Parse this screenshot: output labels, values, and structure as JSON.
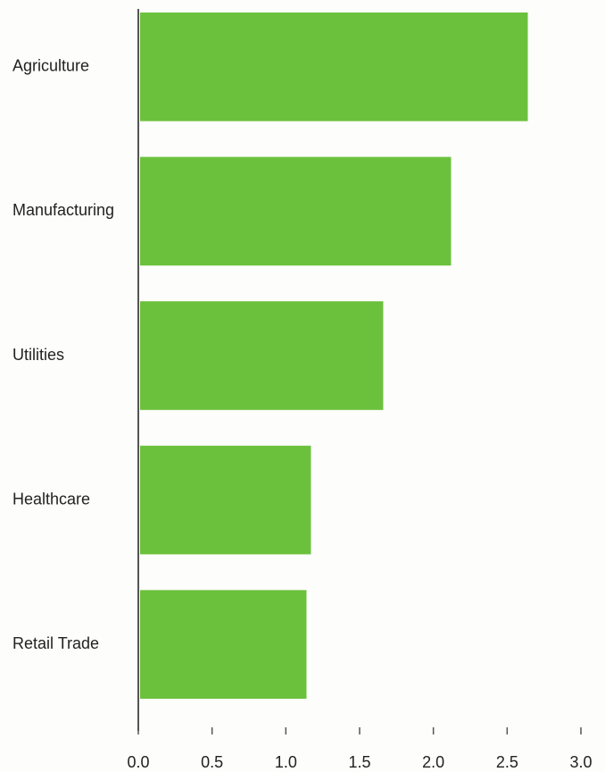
{
  "chart_data": {
    "type": "bar",
    "orientation": "horizontal",
    "categories": [
      "Agriculture",
      "Manufacturing",
      "Utilities",
      "Healthcare",
      "Retail Trade"
    ],
    "values": [
      2.64,
      2.12,
      1.66,
      1.17,
      1.14
    ],
    "color": "#6cc13c",
    "xlim": [
      0,
      3
    ],
    "xticks": [
      {
        "value": 0,
        "label": "0.0"
      },
      {
        "value": 0.5,
        "label": "0.5"
      },
      {
        "value": 1,
        "label": "1.0"
      },
      {
        "value": 1.5,
        "label": "1.5"
      },
      {
        "value": 2,
        "label": "2.0"
      },
      {
        "value": 2.5,
        "label": "2.5"
      },
      {
        "value": 3,
        "label": "3.0"
      }
    ],
    "grid": false
  }
}
